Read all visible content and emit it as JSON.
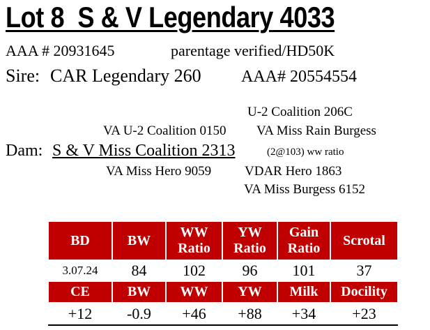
{
  "header": {
    "title": "Lot 8  S & V Legendary 4033",
    "registration": "AAA # 20931645",
    "note": "parentage verified/HD50K"
  },
  "sire": {
    "label": "Sire:",
    "name": "CAR Legendary 260",
    "registration": "AAA# 20554554"
  },
  "pedigree": {
    "dam_sire_sire": "U-2 Coalition 206C",
    "dam_sire": "VA U-2 Coalition 0150",
    "dam_sire_dam": "VA Miss Rain Burgess",
    "dam_label": "Dam:",
    "dam": "S & V Miss Coalition 2313",
    "dam_note": "(2@103) ww ratio",
    "dam_dam": "VA Miss Hero 9059",
    "dam_dam_sire": "VDAR Hero 1863",
    "dam_dam_dam": "VA Miss Burgess 6152"
  },
  "table": {
    "rows": [
      [
        "BD",
        "BW",
        "WW Ratio",
        "YW Ratio",
        "Gain Ratio",
        "Scrotal"
      ],
      [
        "3.07.24",
        "84",
        "102",
        "96",
        "101",
        "37"
      ],
      [
        "CE",
        "BW",
        "WW",
        "YW",
        "Milk",
        "Docility"
      ],
      [
        "+12",
        "-0.9",
        "+46",
        "+88",
        "+34",
        "+23"
      ]
    ]
  }
}
